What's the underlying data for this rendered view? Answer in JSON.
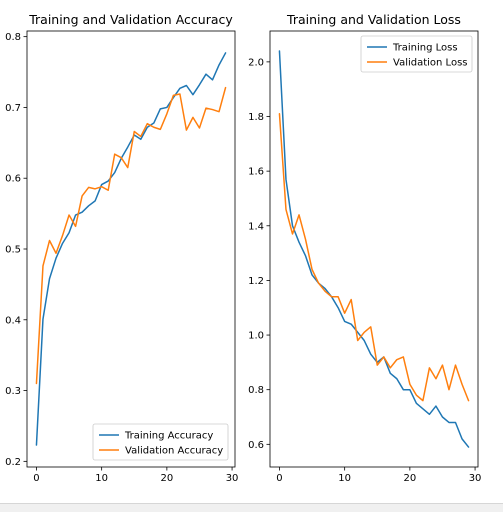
{
  "chart_data": [
    {
      "type": "line",
      "title": "Training and Validation Accuracy",
      "xlabel": "",
      "ylabel": "",
      "xlim": [
        -1.45,
        30.45
      ],
      "ylim": [
        0.192,
        0.808
      ],
      "xticks": [
        0,
        10,
        20,
        30
      ],
      "yticks": [
        0.2,
        0.3,
        0.4,
        0.5,
        0.6,
        0.7,
        0.8
      ],
      "ytick_labels": [
        "0.2",
        "0.3",
        "0.4",
        "0.5",
        "0.6",
        "0.7",
        "0.8"
      ],
      "grid": false,
      "legend_position": "lower-right",
      "x": [
        0,
        1,
        2,
        3,
        4,
        5,
        6,
        7,
        8,
        9,
        10,
        11,
        12,
        13,
        14,
        15,
        16,
        17,
        18,
        19,
        20,
        21,
        22,
        23,
        24,
        25,
        26,
        27,
        28,
        29
      ],
      "series": [
        {
          "name": "Training Accuracy",
          "color": "#1f77b4",
          "values": [
            0.223,
            0.401,
            0.458,
            0.487,
            0.508,
            0.523,
            0.548,
            0.552,
            0.561,
            0.568,
            0.591,
            0.596,
            0.608,
            0.628,
            0.644,
            0.661,
            0.655,
            0.672,
            0.678,
            0.698,
            0.7,
            0.714,
            0.727,
            0.731,
            0.718,
            0.732,
            0.747,
            0.739,
            0.76,
            0.777
          ]
        },
        {
          "name": "Validation Accuracy",
          "color": "#ff7f0e",
          "values": [
            0.31,
            0.476,
            0.512,
            0.494,
            0.519,
            0.548,
            0.532,
            0.575,
            0.587,
            0.585,
            0.588,
            0.583,
            0.634,
            0.629,
            0.615,
            0.666,
            0.659,
            0.677,
            0.672,
            0.669,
            0.691,
            0.717,
            0.719,
            0.668,
            0.686,
            0.671,
            0.699,
            0.697,
            0.694,
            0.728
          ]
        }
      ]
    },
    {
      "type": "line",
      "title": "Training and Validation Loss",
      "xlabel": "",
      "ylabel": "",
      "xlim": [
        -1.45,
        30.45
      ],
      "ylim": [
        0.517,
        2.113
      ],
      "xticks": [
        0,
        10,
        20,
        30
      ],
      "yticks": [
        0.6,
        0.8,
        1.0,
        1.2,
        1.4,
        1.6,
        1.8,
        2.0
      ],
      "ytick_labels": [
        "0.6",
        "0.8",
        "1.0",
        "1.2",
        "1.4",
        "1.6",
        "1.8",
        "2.0"
      ],
      "grid": false,
      "legend_position": "upper-right",
      "x": [
        0,
        1,
        2,
        3,
        4,
        5,
        6,
        7,
        8,
        9,
        10,
        11,
        12,
        13,
        14,
        15,
        16,
        17,
        18,
        19,
        20,
        21,
        22,
        23,
        24,
        25,
        26,
        27,
        28,
        29
      ],
      "series": [
        {
          "name": "Training Loss",
          "color": "#1f77b4",
          "values": [
            2.04,
            1.57,
            1.4,
            1.34,
            1.29,
            1.22,
            1.19,
            1.17,
            1.14,
            1.1,
            1.05,
            1.04,
            1.01,
            0.98,
            0.93,
            0.9,
            0.92,
            0.86,
            0.84,
            0.8,
            0.8,
            0.75,
            0.73,
            0.71,
            0.74,
            0.7,
            0.68,
            0.68,
            0.62,
            0.59
          ]
        },
        {
          "name": "Validation Loss",
          "color": "#ff7f0e",
          "values": [
            1.81,
            1.46,
            1.37,
            1.44,
            1.35,
            1.24,
            1.19,
            1.16,
            1.14,
            1.14,
            1.08,
            1.13,
            0.98,
            1.01,
            1.03,
            0.89,
            0.92,
            0.88,
            0.91,
            0.92,
            0.82,
            0.78,
            0.76,
            0.88,
            0.84,
            0.89,
            0.8,
            0.89,
            0.82,
            0.76
          ]
        }
      ]
    }
  ]
}
